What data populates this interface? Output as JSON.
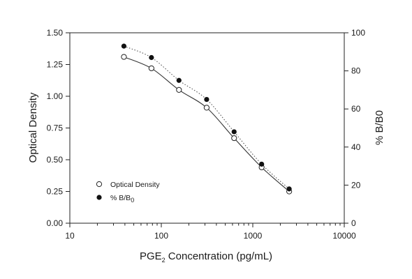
{
  "chart_data": {
    "type": "scatter",
    "x_axis": {
      "label_main": "PGE",
      "label_sub": "2",
      "label_rest": " Concentration (pg/mL)",
      "scale": "log",
      "range": [
        10,
        10000
      ],
      "ticks": [
        10,
        100,
        1000,
        10000
      ],
      "tick_labels": [
        "10",
        "100",
        "1000",
        "10000"
      ]
    },
    "y_axis_left": {
      "label": "Optical Density",
      "range": [
        0,
        1.5
      ],
      "ticks": [
        0,
        0.25,
        0.5,
        0.75,
        1.0,
        1.25,
        1.5
      ],
      "tick_labels": [
        "0.00",
        "0.25",
        "0.50",
        "0.75",
        "1.00",
        "1.25",
        "1.50"
      ]
    },
    "y_axis_right": {
      "label": "% B/B0",
      "range": [
        0,
        100
      ],
      "ticks": [
        0,
        20,
        40,
        60,
        80,
        100
      ],
      "tick_labels": [
        "0",
        "20",
        "40",
        "60",
        "80",
        "100"
      ]
    },
    "series": [
      {
        "name": "Optical Density",
        "marker": "open-circle",
        "line": "solid",
        "axis": "left",
        "x": [
          39,
          78,
          156,
          313,
          625,
          1250,
          2500
        ],
        "y": [
          1.31,
          1.22,
          1.05,
          0.91,
          0.67,
          0.44,
          0.25
        ]
      },
      {
        "name_main": "% B/B",
        "name_sub": "0",
        "marker": "filled-circle",
        "line": "dotted",
        "axis": "right",
        "x": [
          39,
          78,
          156,
          313,
          625,
          1250,
          2500
        ],
        "y": [
          93,
          87,
          75,
          65,
          48,
          31,
          18
        ]
      }
    ],
    "grid": false,
    "legend_position": "bottom-left"
  }
}
